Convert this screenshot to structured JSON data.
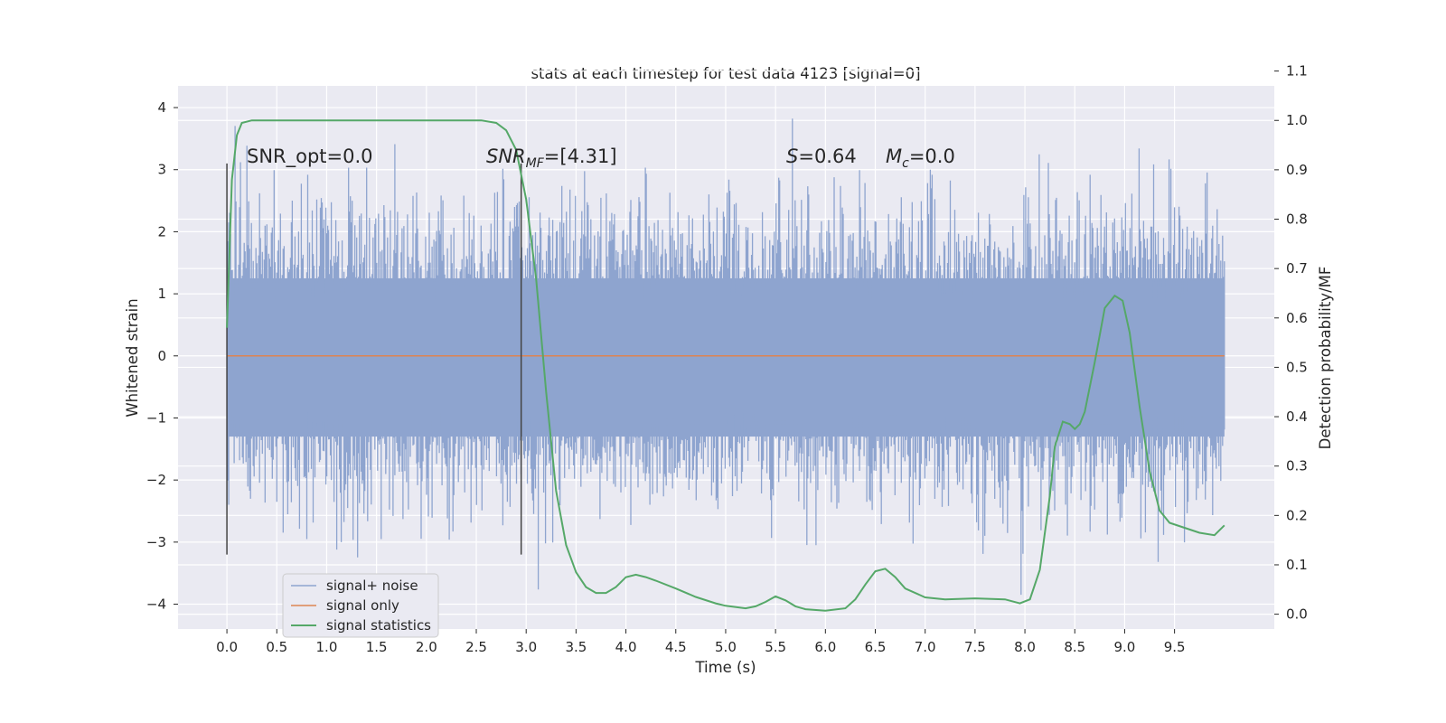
{
  "chart_data": {
    "type": "line",
    "title": "stats at each timestep for test data 4123 [signal=0]",
    "xlabel": "Time (s)",
    "ylabel": "Whitened strain",
    "ylabel_right": "Detection probability/MF",
    "xlim": [
      -0.49,
      10.5
    ],
    "ylim": [
      -4.4,
      4.35
    ],
    "ylim_right": [
      -0.03,
      1.07
    ],
    "x_ticks": [
      0.0,
      0.5,
      1.0,
      1.5,
      2.0,
      2.5,
      3.0,
      3.5,
      4.0,
      4.5,
      5.0,
      5.5,
      6.0,
      6.5,
      7.0,
      7.5,
      8.0,
      8.5,
      9.0,
      9.5
    ],
    "x_tick_labels": [
      "0.0",
      "0.5",
      "1.0",
      "1.5",
      "2.0",
      "2.5",
      "3.0",
      "3.5",
      "4.0",
      "4.5",
      "5.0",
      "5.5",
      "6.0",
      "6.5",
      "7.0",
      "7.5",
      "8.0",
      "8.5",
      "9.0",
      "9.5"
    ],
    "y_ticks": [
      -4,
      -3,
      -2,
      -1,
      0,
      1,
      2,
      3,
      4
    ],
    "y_tick_labels": [
      "−4",
      "−3",
      "−2",
      "−1",
      "0",
      "1",
      "2",
      "3",
      "4"
    ],
    "y_right_ticks": [
      0.0,
      0.1,
      0.2,
      0.3,
      0.4,
      0.5,
      0.6,
      0.7,
      0.8,
      0.9,
      1.0,
      1.1
    ],
    "y_right_tick_labels": [
      "0.0",
      "0.1",
      "0.2",
      "0.3",
      "0.4",
      "0.5",
      "0.6",
      "0.7",
      "0.8",
      "0.9",
      "1.0",
      "1.1"
    ],
    "grid": true,
    "legend_position": "lower-left",
    "colors": {
      "background": "#eaeaf2",
      "grid": "#ffffff",
      "noise": "#8ea4cf",
      "signal": "#dd8452",
      "statistics": "#55a868",
      "vline": "#444444"
    },
    "annotations": {
      "snr_opt": "SNR_opt=0.0",
      "snr_mf_prefix": "SNR",
      "snr_mf_sub": "MF",
      "snr_mf_suffix": "=[4.31]",
      "s_var": "S",
      "s_suffix": "=0.64",
      "mc_var": "M",
      "mc_sub": "c",
      "mc_suffix": "=0.0"
    },
    "vertical_markers": [
      {
        "x": 0.0,
        "y_range": [
          -3.2,
          3.1
        ]
      },
      {
        "x": 2.95,
        "y_range": [
          -3.2,
          3.1
        ]
      }
    ],
    "series": [
      {
        "name": "signal+ noise",
        "axis": "left",
        "x_range": [
          0.0,
          10.0
        ],
        "envelope_min": -4.05,
        "envelope_max": 3.95,
        "dense_band": [
          -1.3,
          1.25
        ]
      },
      {
        "name": "signal only",
        "axis": "left",
        "x": [
          0.0,
          10.0
        ],
        "y": [
          0.0,
          0.0
        ]
      },
      {
        "name": "signal statistics",
        "axis": "right",
        "x": [
          0.0,
          0.05,
          0.1,
          0.15,
          0.25,
          0.5,
          1.0,
          1.5,
          2.0,
          2.4,
          2.55,
          2.7,
          2.8,
          2.9,
          3.0,
          3.1,
          3.2,
          3.3,
          3.4,
          3.5,
          3.6,
          3.7,
          3.8,
          3.9,
          4.0,
          4.1,
          4.2,
          4.3,
          4.5,
          4.7,
          4.9,
          5.0,
          5.2,
          5.3,
          5.4,
          5.5,
          5.6,
          5.7,
          5.8,
          6.0,
          6.2,
          6.3,
          6.4,
          6.5,
          6.6,
          6.7,
          6.8,
          7.0,
          7.2,
          7.5,
          7.8,
          7.95,
          8.05,
          8.15,
          8.25,
          8.3,
          8.38,
          8.45,
          8.5,
          8.55,
          8.6,
          8.7,
          8.8,
          8.9,
          8.98,
          9.05,
          9.15,
          9.25,
          9.35,
          9.45,
          9.6,
          9.75,
          9.9,
          10.0
        ],
        "y": [
          0.58,
          0.88,
          0.97,
          0.995,
          1.0,
          1.0,
          1.0,
          1.0,
          1.0,
          1.0,
          1.0,
          0.995,
          0.98,
          0.94,
          0.84,
          0.68,
          0.45,
          0.25,
          0.14,
          0.085,
          0.055,
          0.043,
          0.043,
          0.055,
          0.075,
          0.08,
          0.075,
          0.068,
          0.052,
          0.035,
          0.022,
          0.017,
          0.012,
          0.016,
          0.025,
          0.036,
          0.028,
          0.016,
          0.01,
          0.007,
          0.012,
          0.03,
          0.06,
          0.087,
          0.092,
          0.075,
          0.052,
          0.034,
          0.03,
          0.032,
          0.03,
          0.022,
          0.03,
          0.09,
          0.24,
          0.34,
          0.39,
          0.385,
          0.375,
          0.385,
          0.41,
          0.51,
          0.62,
          0.645,
          0.635,
          0.57,
          0.42,
          0.29,
          0.21,
          0.185,
          0.175,
          0.165,
          0.16,
          0.18
        ]
      }
    ]
  }
}
